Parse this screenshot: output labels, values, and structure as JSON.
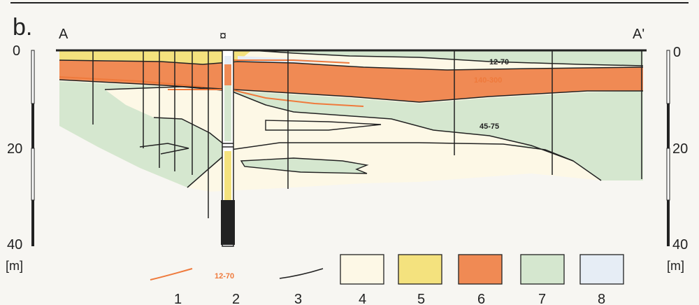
{
  "figure_label": "b.",
  "section": {
    "start": "A",
    "end": "A'"
  },
  "well_symbol": "¤",
  "depth_scale": {
    "ticks": [
      "0",
      "20",
      "40"
    ],
    "unit": "[m]"
  },
  "zone_labels": {
    "top": "12-70",
    "orange": "140-300",
    "green": "45-75"
  },
  "legend": {
    "items": [
      {
        "num": "1",
        "sample": "",
        "color": "#ef7a3c"
      },
      {
        "num": "2",
        "sample": "12-70",
        "color": "#ef7a3c"
      },
      {
        "num": "3",
        "sample": "",
        "color": "#222222"
      },
      {
        "num": "4",
        "sample": "",
        "color": "#fdf8e6"
      },
      {
        "num": "5",
        "sample": "",
        "color": "#f4e27e"
      },
      {
        "num": "6",
        "sample": "",
        "color": "#f08a54"
      },
      {
        "num": "7",
        "sample": "",
        "color": "#d5e7cf"
      },
      {
        "num": "8",
        "sample": "",
        "color": "#e6edf5"
      }
    ]
  },
  "colors": {
    "sand_light": "#fdf8e6",
    "sand_yellow": "#f4e27e",
    "orange": "#f08a54",
    "green": "#d5e7cf",
    "blue": "#e6edf5",
    "line": "#222222",
    "orange_line": "#ef7a3c"
  }
}
